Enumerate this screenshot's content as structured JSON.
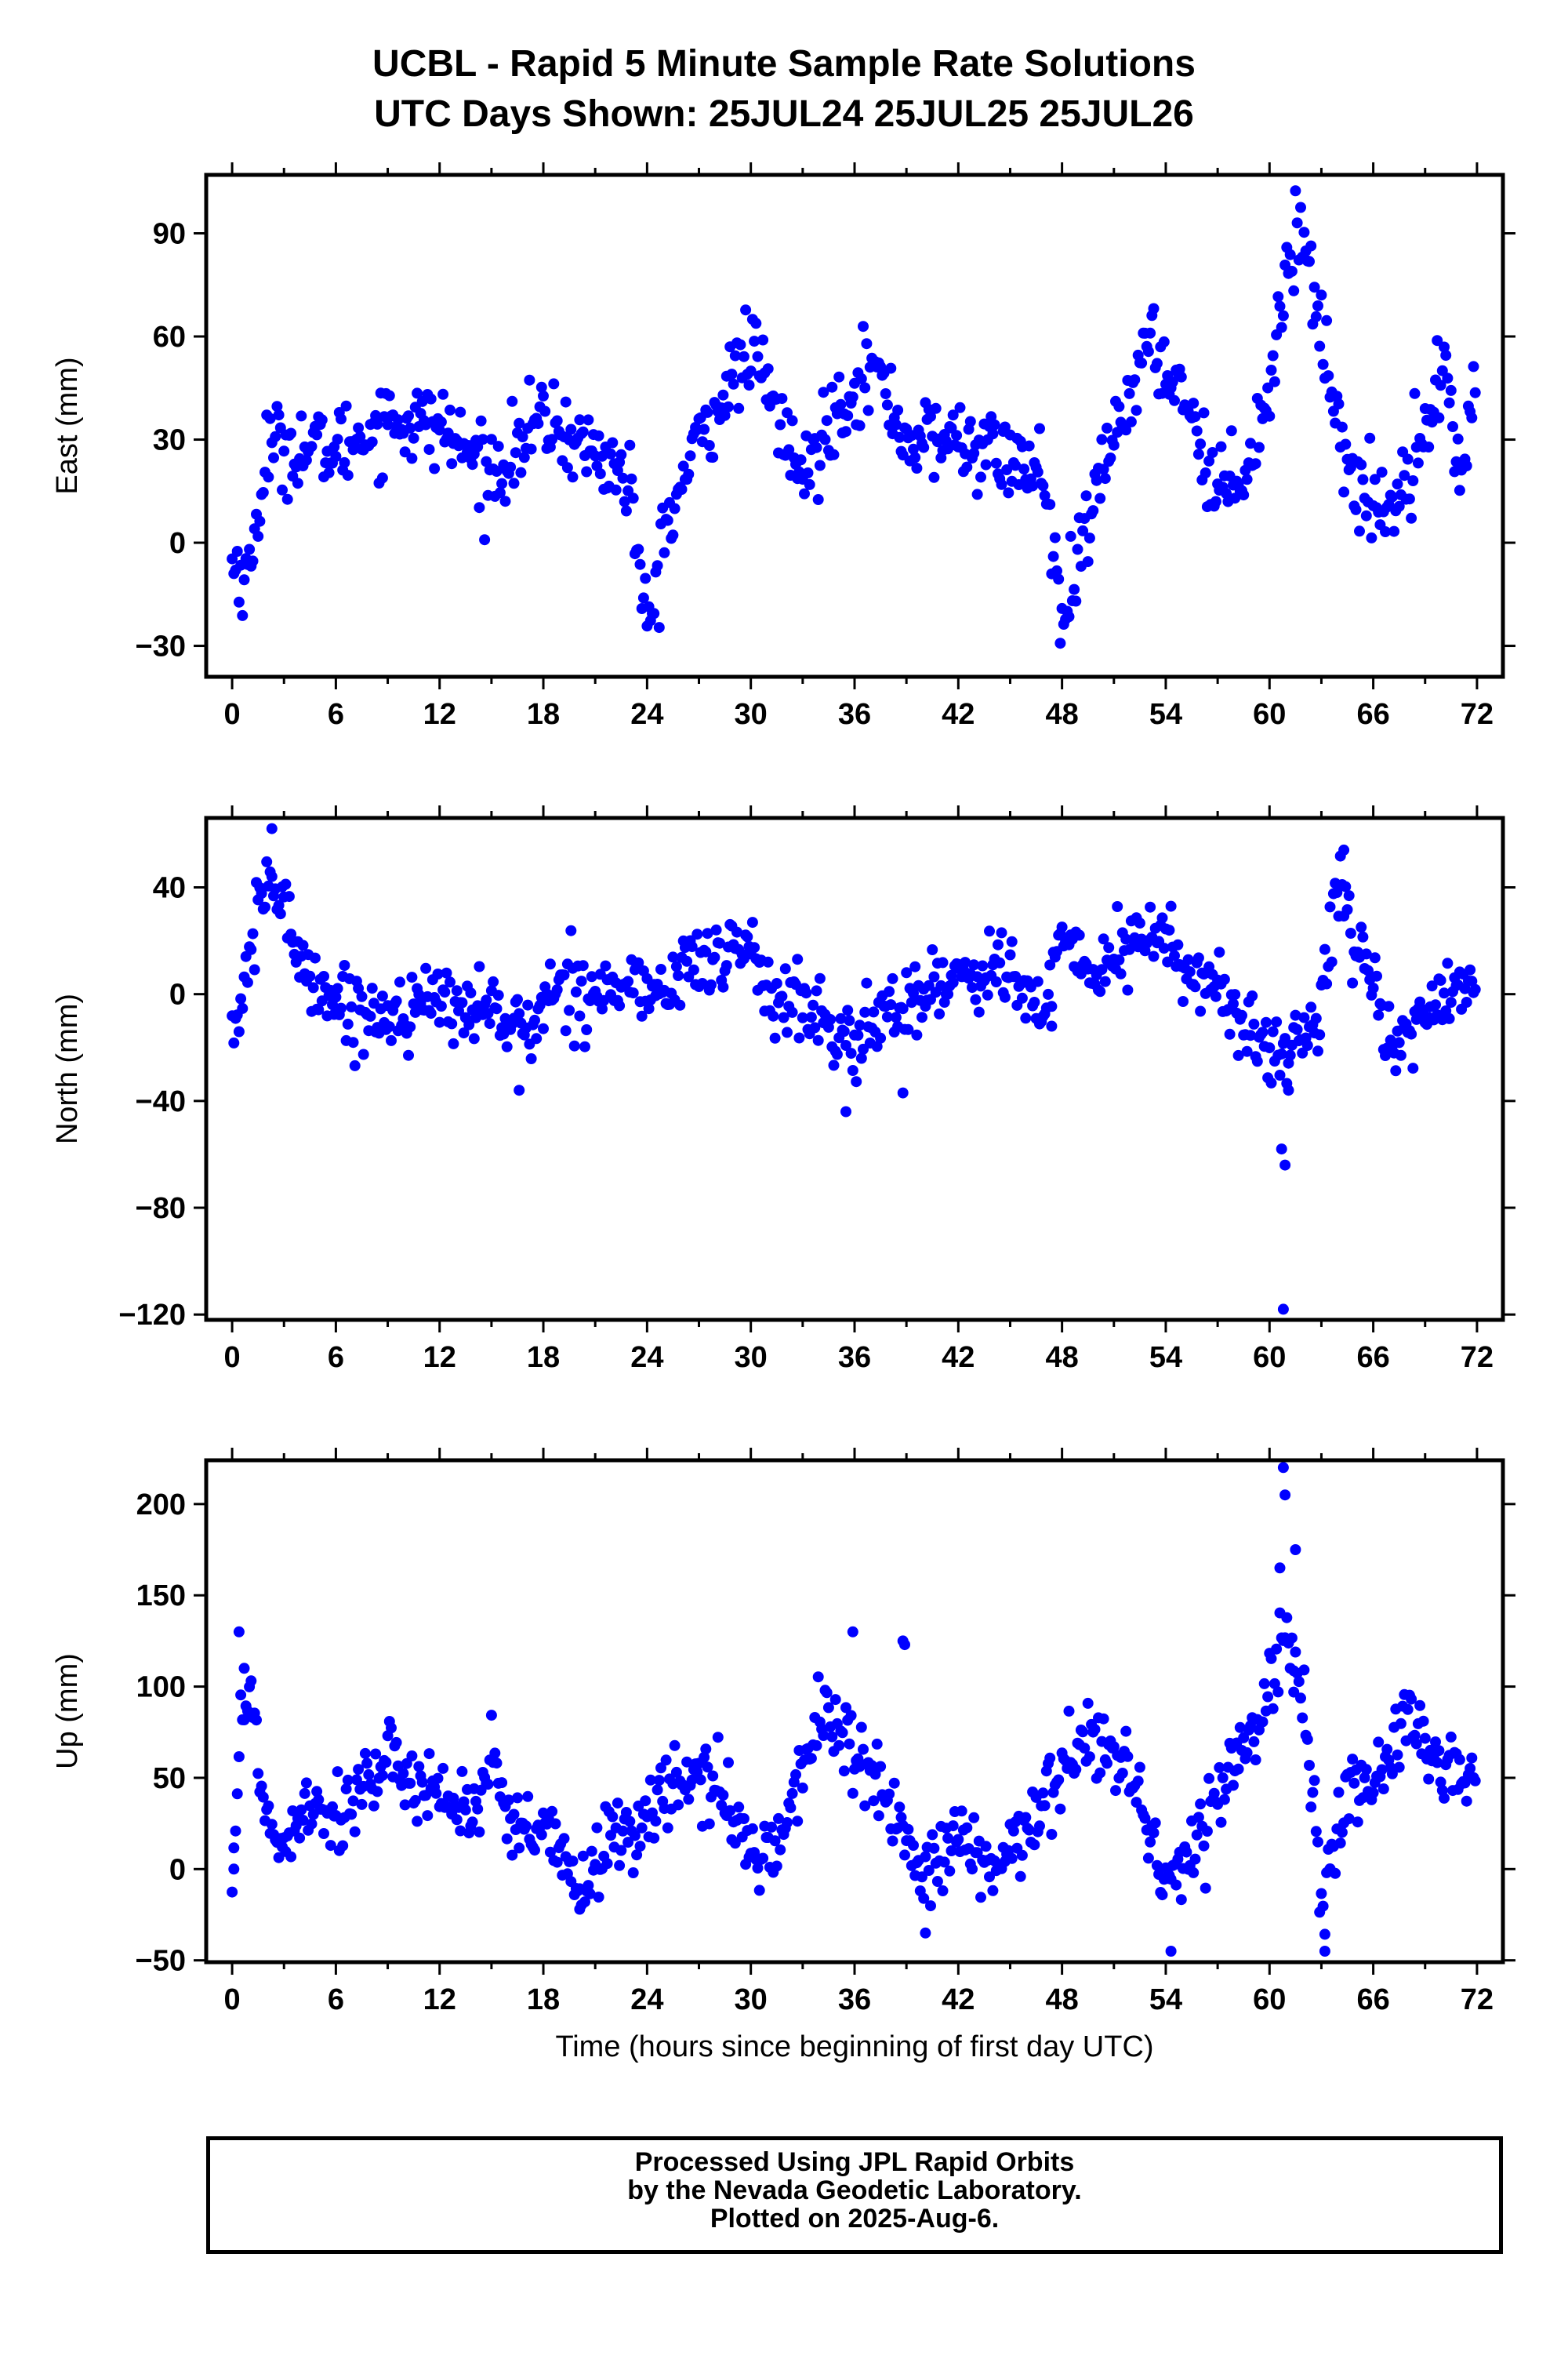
{
  "title": {
    "line1": "UCBL - Rapid 5 Minute Sample Rate Solutions",
    "line2": "UTC Days Shown:  25JUL24 25JUL25 25JUL26"
  },
  "footer": {
    "line1": "Processed Using JPL Rapid Orbits",
    "line2": "by the Nevada Geodetic Laboratory.",
    "line3": "Plotted on 2025-Aug-6."
  },
  "colors": {
    "marker": "#0000ff",
    "frame": "#000000"
  },
  "chart_data": [
    {
      "type": "scatter",
      "title": "",
      "xlabel": "",
      "ylabel": "East (mm)",
      "xlim": [
        -1.5,
        73.5
      ],
      "ylim": [
        -39,
        107
      ],
      "xticks": [
        0,
        6,
        12,
        18,
        24,
        30,
        36,
        42,
        48,
        54,
        60,
        66,
        72
      ],
      "yticks": [
        -30,
        0,
        30,
        60,
        90
      ],
      "grid": false,
      "trend": [
        [
          0,
          -6
        ],
        [
          1,
          -10
        ],
        [
          2,
          28
        ],
        [
          6,
          27
        ],
        [
          9,
          36
        ],
        [
          12,
          34
        ],
        [
          15,
          20
        ],
        [
          18,
          36
        ],
        [
          21,
          26
        ],
        [
          23,
          18
        ],
        [
          24,
          -28
        ],
        [
          25,
          3
        ],
        [
          27,
          30
        ],
        [
          30,
          57
        ],
        [
          33,
          18
        ],
        [
          35,
          40
        ],
        [
          37,
          52
        ],
        [
          39,
          30
        ],
        [
          42,
          30
        ],
        [
          46,
          22
        ],
        [
          47,
          20
        ],
        [
          48,
          -27
        ],
        [
          49,
          -5
        ],
        [
          51,
          32
        ],
        [
          53,
          57
        ],
        [
          55,
          45
        ],
        [
          57,
          14
        ],
        [
          59,
          26
        ],
        [
          60,
          46
        ],
        [
          61,
          80
        ],
        [
          62,
          92
        ],
        [
          63,
          60
        ],
        [
          64,
          36
        ],
        [
          65,
          14
        ],
        [
          67,
          10
        ],
        [
          69,
          34
        ],
        [
          70,
          52
        ],
        [
          71,
          20
        ],
        [
          72,
          45
        ]
      ],
      "noise": 6
    },
    {
      "type": "scatter",
      "title": "",
      "xlabel": "",
      "ylabel": "North (mm)",
      "xlim": [
        -1.5,
        73.5
      ],
      "ylim": [
        -122,
        66
      ],
      "xticks": [
        0,
        6,
        12,
        18,
        24,
        30,
        36,
        42,
        48,
        54,
        60,
        66,
        72
      ],
      "yticks": [
        -120,
        -80,
        -40,
        0,
        40
      ],
      "grid": false,
      "trend": [
        [
          0,
          -15
        ],
        [
          1,
          10
        ],
        [
          2,
          45
        ],
        [
          3,
          32
        ],
        [
          4,
          12
        ],
        [
          6,
          -3
        ],
        [
          8,
          -8
        ],
        [
          12,
          -3
        ],
        [
          15,
          -5
        ],
        [
          17,
          -15
        ],
        [
          19,
          5
        ],
        [
          21,
          2
        ],
        [
          24,
          3
        ],
        [
          25,
          -3
        ],
        [
          26,
          12
        ],
        [
          28,
          12
        ],
        [
          30,
          20
        ],
        [
          31,
          0
        ],
        [
          33,
          -5
        ],
        [
          35,
          -15
        ],
        [
          36,
          -20
        ],
        [
          38,
          -5
        ],
        [
          40,
          0
        ],
        [
          42,
          8
        ],
        [
          45,
          10
        ],
        [
          47,
          -10
        ],
        [
          48,
          20
        ],
        [
          50,
          8
        ],
        [
          52,
          18
        ],
        [
          54,
          25
        ],
        [
          55,
          5
        ],
        [
          57,
          5
        ],
        [
          59,
          -18
        ],
        [
          60,
          -20
        ],
        [
          61,
          -25
        ],
        [
          62,
          -12
        ],
        [
          63,
          -5
        ],
        [
          64,
          48
        ],
        [
          65,
          20
        ],
        [
          66,
          5
        ],
        [
          67,
          -25
        ],
        [
          68,
          -18
        ],
        [
          70,
          5
        ],
        [
          72,
          -2
        ]
      ],
      "noise": 7,
      "extra": [
        [
          60.8,
          -118
        ],
        [
          60.7,
          -58
        ],
        [
          60.9,
          -64
        ],
        [
          61.1,
          -36
        ],
        [
          35.5,
          -44
        ],
        [
          38.8,
          -37
        ],
        [
          16.6,
          -36
        ],
        [
          2.3,
          62
        ],
        [
          47.4,
          -12
        ],
        [
          64.3,
          54
        ]
      ]
    },
    {
      "type": "scatter",
      "title": "",
      "xlabel": "Time (hours since beginning of first day UTC)",
      "ylabel": "Up (mm)",
      "xlim": [
        -1.5,
        73.5
      ],
      "ylim": [
        -51,
        224
      ],
      "xticks": [
        0,
        6,
        12,
        18,
        24,
        30,
        36,
        42,
        48,
        54,
        60,
        66,
        72
      ],
      "yticks": [
        -50,
        0,
        50,
        100,
        150,
        200
      ],
      "grid": false,
      "trend": [
        [
          0,
          0
        ],
        [
          0.5,
          80
        ],
        [
          1,
          95
        ],
        [
          2,
          30
        ],
        [
          3,
          10
        ],
        [
          4,
          40
        ],
        [
          6,
          30
        ],
        [
          8,
          50
        ],
        [
          10,
          55
        ],
        [
          12,
          42
        ],
        [
          14,
          30
        ],
        [
          15,
          60
        ],
        [
          16,
          20
        ],
        [
          18,
          20
        ],
        [
          20,
          -10
        ],
        [
          22,
          15
        ],
        [
          24,
          30
        ],
        [
          26,
          50
        ],
        [
          28,
          45
        ],
        [
          30,
          10
        ],
        [
          32,
          20
        ],
        [
          34,
          90
        ],
        [
          36,
          60
        ],
        [
          38,
          40
        ],
        [
          40,
          -10
        ],
        [
          42,
          20
        ],
        [
          44,
          -5
        ],
        [
          46,
          20
        ],
        [
          48,
          60
        ],
        [
          50,
          75
        ],
        [
          52,
          50
        ],
        [
          54,
          -5
        ],
        [
          55,
          0
        ],
        [
          56,
          20
        ],
        [
          58,
          60
        ],
        [
          60,
          100
        ],
        [
          61,
          130
        ],
        [
          62,
          90
        ],
        [
          63,
          -20
        ],
        [
          64,
          30
        ],
        [
          65,
          50
        ],
        [
          66,
          40
        ],
        [
          67,
          65
        ],
        [
          68,
          80
        ],
        [
          70,
          55
        ],
        [
          72,
          45
        ]
      ],
      "noise": 11,
      "extra": [
        [
          0.1,
          0
        ],
        [
          0.4,
          130
        ],
        [
          0.7,
          110
        ],
        [
          38.8,
          125
        ],
        [
          38.9,
          123
        ],
        [
          60.8,
          220
        ],
        [
          60.9,
          205
        ],
        [
          60.6,
          165
        ],
        [
          61.5,
          175
        ],
        [
          54.3,
          -45
        ],
        [
          63.2,
          -45
        ],
        [
          40.1,
          -35
        ],
        [
          20.1,
          -22
        ],
        [
          35.9,
          130
        ],
        [
          61.4,
          97
        ]
      ]
    }
  ]
}
